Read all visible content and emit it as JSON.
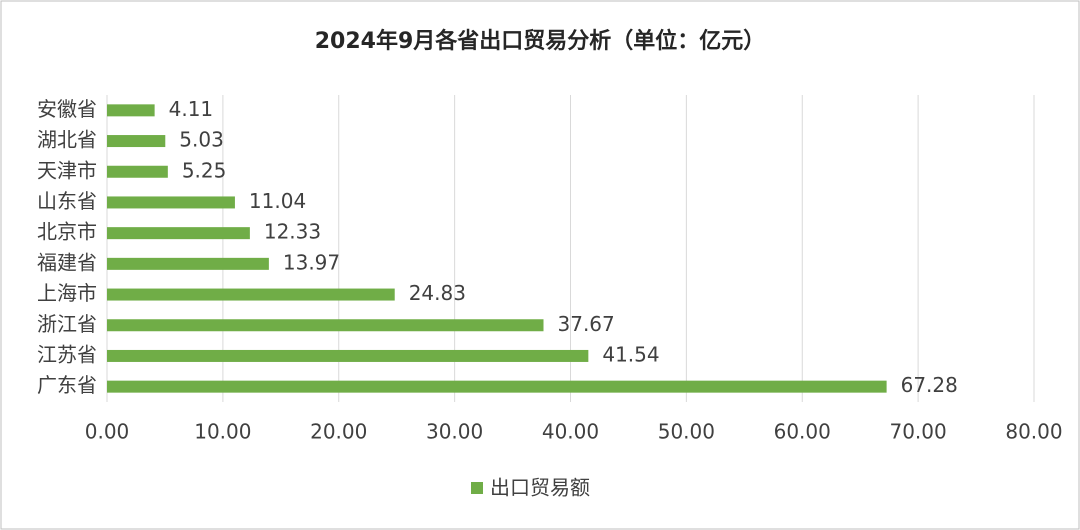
{
  "chart_data": {
    "type": "bar",
    "orientation": "horizontal",
    "title": "2024年9月各省出口贸易分析（单位：亿元）",
    "categories": [
      "安徽省",
      "湖北省",
      "天津市",
      "山东省",
      "北京市",
      "福建省",
      "上海市",
      "浙江省",
      "江苏省",
      "广东省"
    ],
    "series": [
      {
        "name": "出口贸易额",
        "color": "#70ad47",
        "values": [
          4.11,
          5.03,
          5.25,
          11.04,
          12.33,
          13.97,
          24.83,
          37.67,
          41.54,
          67.28
        ]
      }
    ],
    "xlim": [
      0,
      80
    ],
    "xticks": [
      {
        "value": 0,
        "label": "0.00"
      },
      {
        "value": 10,
        "label": "10.00"
      },
      {
        "value": 20,
        "label": "20.00"
      },
      {
        "value": 30,
        "label": "30.00"
      },
      {
        "value": 40,
        "label": "40.00"
      },
      {
        "value": 50,
        "label": "50.00"
      },
      {
        "value": 60,
        "label": "60.00"
      },
      {
        "value": 70,
        "label": "70.00"
      },
      {
        "value": 80,
        "label": "80.00"
      }
    ],
    "grid": true,
    "legend": "bottom"
  }
}
